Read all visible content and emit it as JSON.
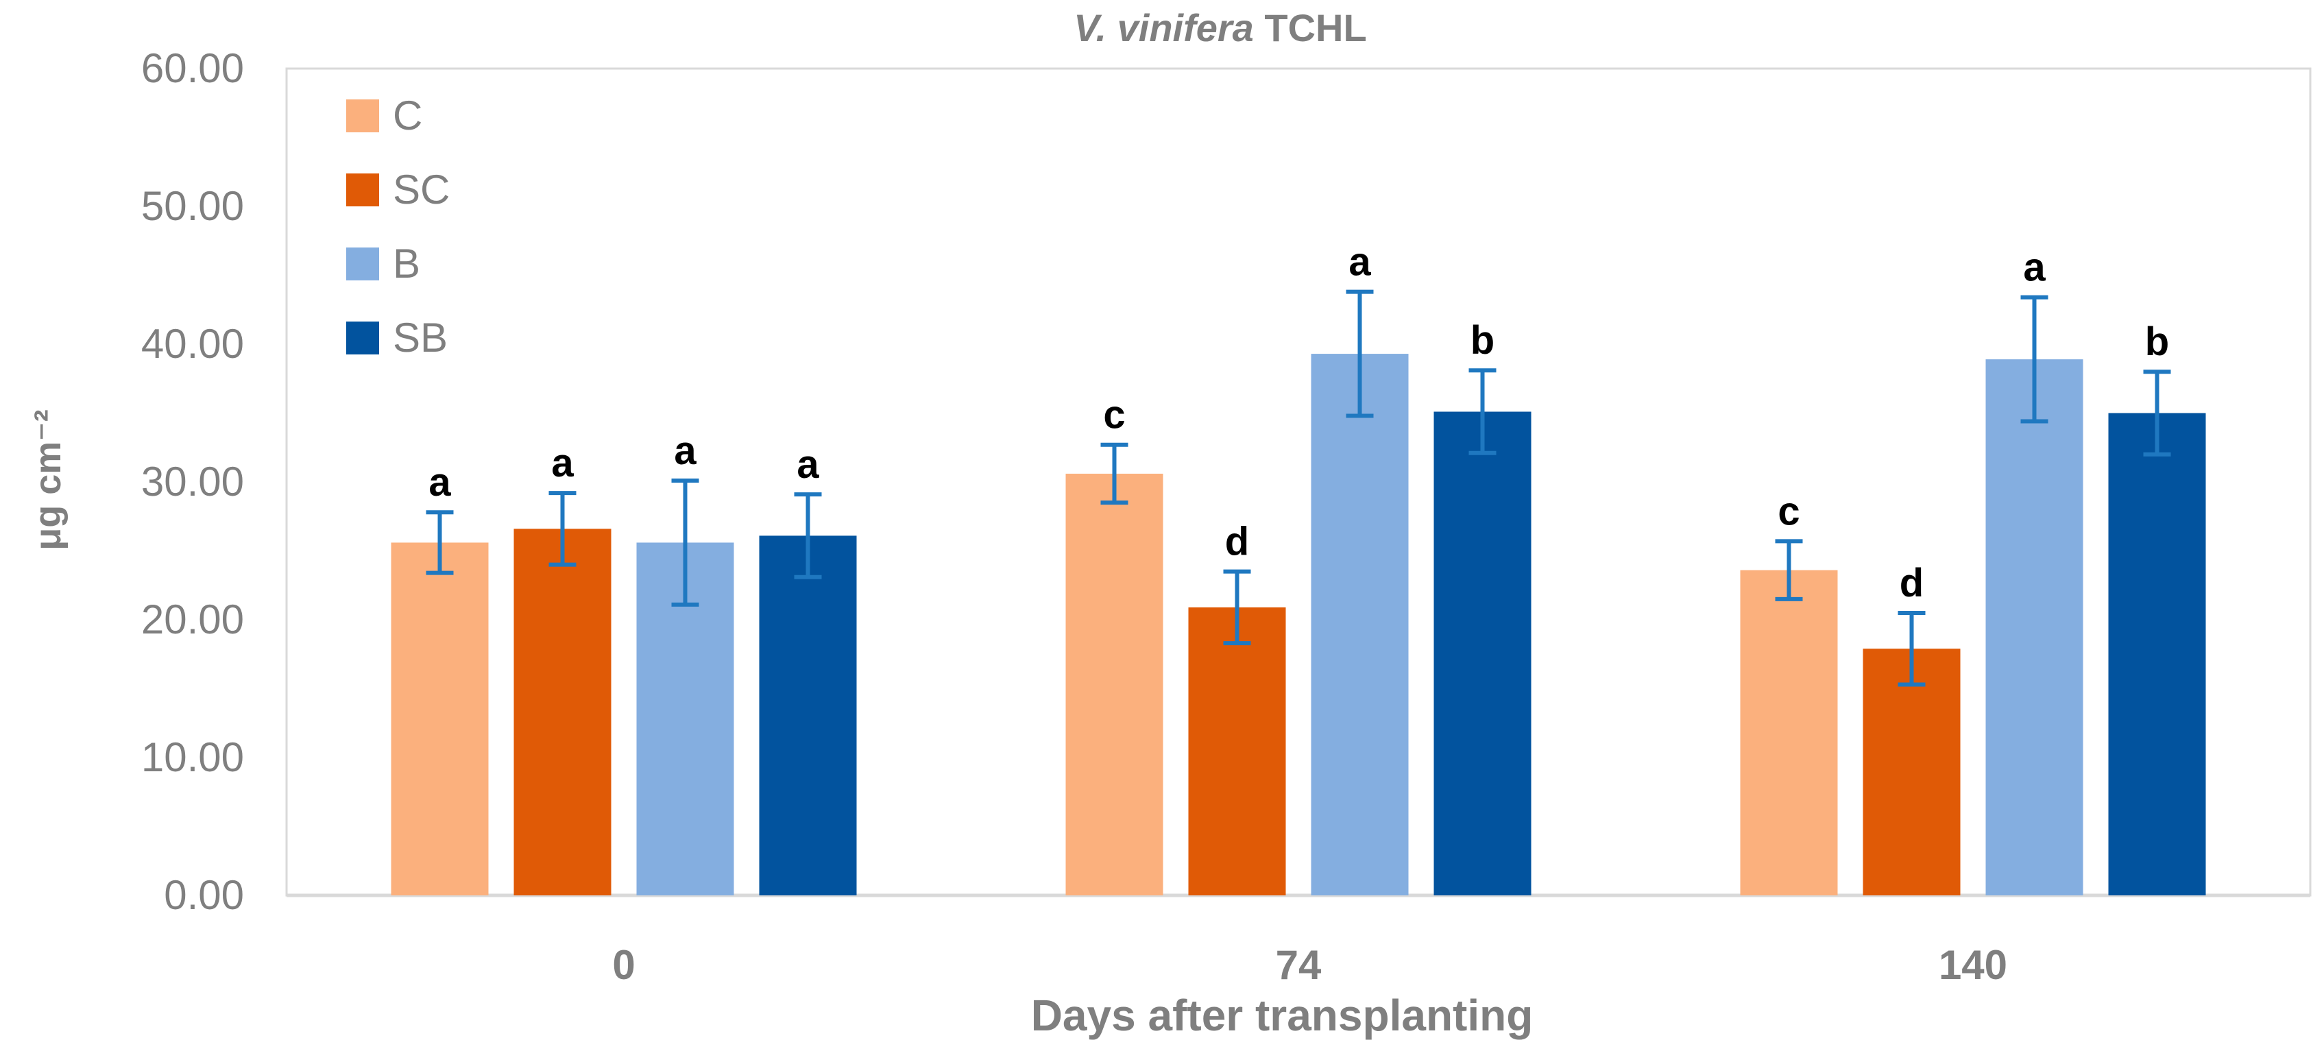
{
  "chart_data": {
    "type": "bar",
    "title": {
      "italic": "V. vinifera",
      "plain": "TCHL"
    },
    "xlabel": "Days after transplanting",
    "ylabel": "μg cm⁻²",
    "ylim": [
      0,
      60
    ],
    "yticks": [
      "0.00",
      "10.00",
      "20.00",
      "30.00",
      "40.00",
      "50.00",
      "60.00"
    ],
    "grid": false,
    "legend_position": "top-left",
    "categories": [
      "0",
      "74",
      "140"
    ],
    "series": [
      {
        "name": "C",
        "color": "#FBB07D",
        "values": [
          25.6,
          30.6,
          23.6
        ],
        "errors": [
          2.2,
          2.1,
          2.1
        ],
        "letters": [
          "a",
          "c",
          "c"
        ]
      },
      {
        "name": "SC",
        "color": "#E05A06",
        "values": [
          26.6,
          20.9,
          17.9
        ],
        "errors": [
          2.6,
          2.6,
          2.6
        ],
        "letters": [
          "a",
          "d",
          "d"
        ]
      },
      {
        "name": "B",
        "color": "#84AEE0",
        "values": [
          25.6,
          39.3,
          38.9
        ],
        "errors": [
          4.5,
          4.5,
          4.5
        ],
        "letters": [
          "a",
          "a",
          "a"
        ]
      },
      {
        "name": "SB",
        "color": "#02539E",
        "values": [
          26.1,
          35.1,
          35.0
        ],
        "errors": [
          3.0,
          3.0,
          3.0
        ],
        "letters": [
          "a",
          "b",
          "b"
        ]
      }
    ],
    "error_bar_color": "#1F78C0"
  }
}
